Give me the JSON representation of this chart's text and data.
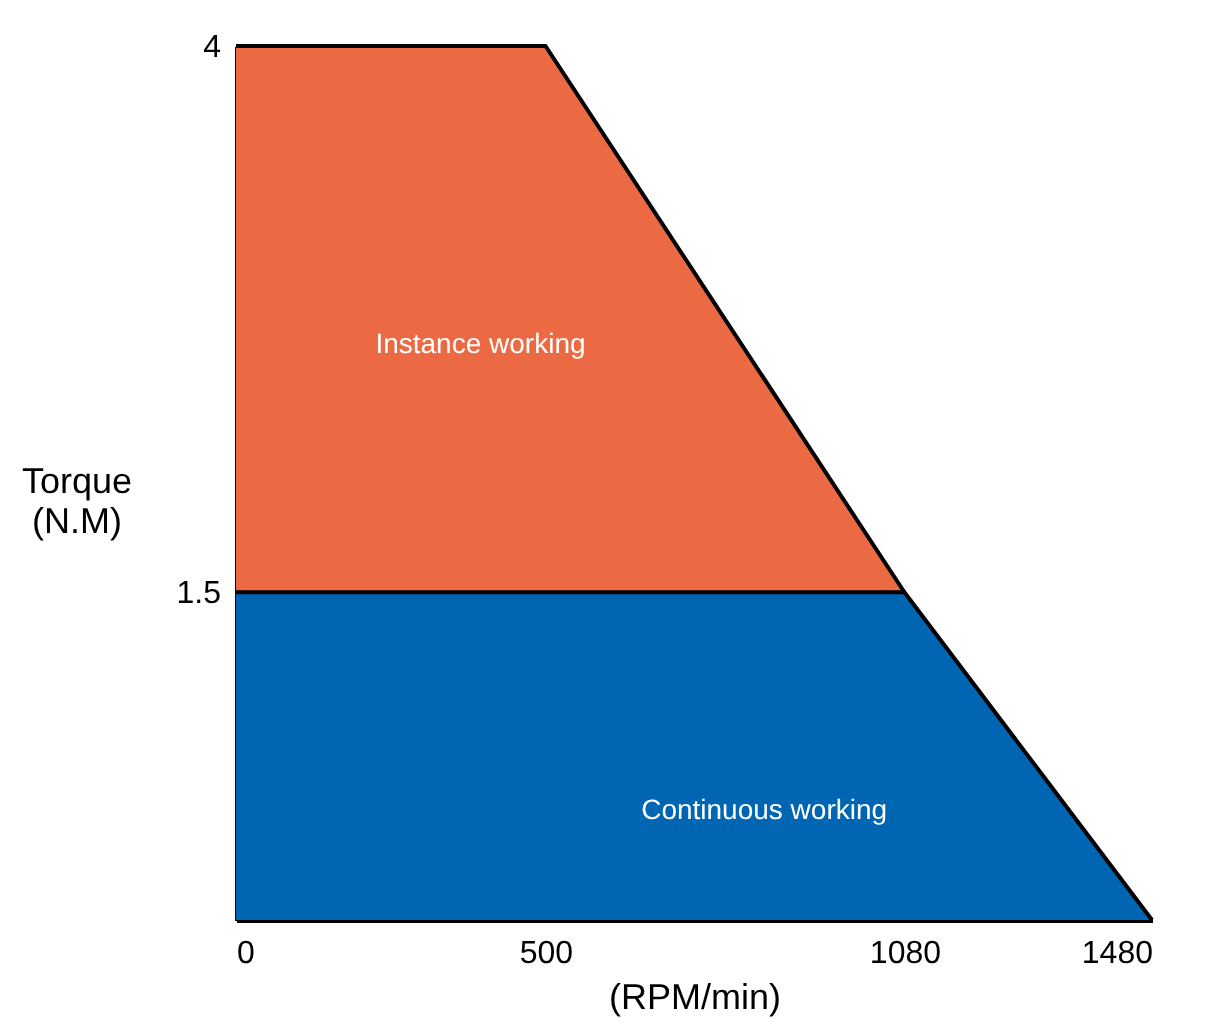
{
  "chart_data": {
    "type": "area",
    "xlabel": "(RPM/min)",
    "ylabel": "Torque\n(N.M)",
    "series": [
      {
        "name": "Instance working",
        "color": "#ec6a43",
        "x": [
          0,
          500,
          1080
        ],
        "values": [
          4,
          4,
          1.5
        ]
      },
      {
        "name": "Continuous working",
        "color": "#0066b3",
        "x": [
          0,
          1080,
          1480
        ],
        "values": [
          1.5,
          1.5,
          0
        ]
      }
    ],
    "xlim": [
      0,
      1480
    ],
    "xticks": [
      0,
      500,
      1080,
      1480
    ],
    "ylim": [
      0,
      4
    ],
    "yticks": [
      1.5,
      4
    ],
    "grid": false
  }
}
